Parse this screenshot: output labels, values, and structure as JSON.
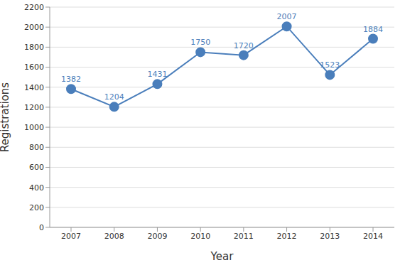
{
  "chart_data": {
    "type": "line",
    "x_label": "Year",
    "y_label": "Registrations",
    "categories": [
      "2007",
      "2008",
      "2009",
      "2010",
      "2011",
      "2012",
      "2013",
      "2014"
    ],
    "values": [
      1382,
      1204,
      1431,
      1750,
      1720,
      2007,
      1523,
      1884
    ],
    "color": "#4a7ebb",
    "marker": "circle",
    "ylim": [
      0,
      2200
    ],
    "yticks": [
      0,
      200,
      400,
      600,
      800,
      1000,
      1200,
      1400,
      1600,
      1800,
      2000,
      2200
    ],
    "grid": true,
    "data_labels": true
  }
}
